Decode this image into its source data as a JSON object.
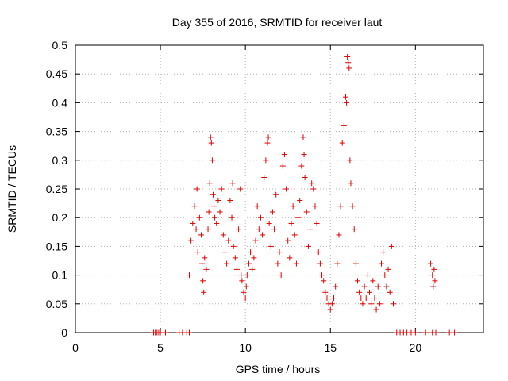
{
  "chart_data": {
    "type": "scatter",
    "title": "Day 355 of 2016, SRMTID for receiver laut",
    "xlabel": "GPS time / hours",
    "ylabel": "SRMTID / TECUs",
    "xlim": [
      0,
      24
    ],
    "ylim": [
      0,
      0.5
    ],
    "xticks": [
      0,
      5,
      10,
      15,
      20
    ],
    "yticks": [
      0,
      0.05,
      0.1,
      0.15,
      0.2,
      0.25,
      0.3,
      0.35,
      0.4,
      0.45,
      0.5
    ],
    "ytick_labels": [
      "0",
      "0.05",
      "0.1",
      "0.15",
      "0.2",
      "0.25",
      "0.3",
      "0.35",
      "0.4",
      "0.45",
      "0.5"
    ],
    "grid": true,
    "marker": "plus",
    "color": "#e00000",
    "series": [
      {
        "points": [
          [
            4.6,
            0
          ],
          [
            4.7,
            0
          ],
          [
            4.8,
            0
          ],
          [
            4.9,
            0
          ],
          [
            5.0,
            0
          ],
          [
            5.3,
            0
          ],
          [
            6.1,
            0
          ],
          [
            6.3,
            0
          ],
          [
            6.55,
            0
          ],
          [
            6.7,
            0
          ],
          [
            18.9,
            0
          ],
          [
            19.1,
            0
          ],
          [
            19.3,
            0
          ],
          [
            19.5,
            0
          ],
          [
            19.75,
            0
          ],
          [
            20.0,
            0
          ],
          [
            20.6,
            0
          ],
          [
            20.8,
            0
          ],
          [
            21.0,
            0
          ],
          [
            21.2,
            0
          ],
          [
            22.0,
            0
          ],
          [
            22.3,
            0
          ],
          [
            6.7,
            0.1
          ],
          [
            6.8,
            0.16
          ],
          [
            6.9,
            0.19
          ],
          [
            7.0,
            0.22
          ],
          [
            7.1,
            0.18
          ],
          [
            7.15,
            0.25
          ],
          [
            7.2,
            0.14
          ],
          [
            7.3,
            0.2
          ],
          [
            7.4,
            0.17
          ],
          [
            7.45,
            0.12
          ],
          [
            7.5,
            0.09
          ],
          [
            7.55,
            0.07
          ],
          [
            7.6,
            0.13
          ],
          [
            7.7,
            0.11
          ],
          [
            7.8,
            0.18
          ],
          [
            7.85,
            0.21
          ],
          [
            7.9,
            0.26
          ],
          [
            7.95,
            0.34
          ],
          [
            8.0,
            0.33
          ],
          [
            8.05,
            0.3
          ],
          [
            8.1,
            0.24
          ],
          [
            8.15,
            0.22
          ],
          [
            8.2,
            0.2
          ],
          [
            8.3,
            0.19
          ],
          [
            8.4,
            0.23
          ],
          [
            8.5,
            0.21
          ],
          [
            8.6,
            0.25
          ],
          [
            8.7,
            0.17
          ],
          [
            8.8,
            0.14
          ],
          [
            8.9,
            0.12
          ],
          [
            9.0,
            0.16
          ],
          [
            9.1,
            0.23
          ],
          [
            9.2,
            0.2
          ],
          [
            9.25,
            0.26
          ],
          [
            9.3,
            0.15
          ],
          [
            9.4,
            0.13
          ],
          [
            9.5,
            0.11
          ],
          [
            9.6,
            0.18
          ],
          [
            9.7,
            0.25
          ],
          [
            9.75,
            0.1
          ],
          [
            9.8,
            0.09
          ],
          [
            9.9,
            0.07
          ],
          [
            10.0,
            0.06
          ],
          [
            10.05,
            0.08
          ],
          [
            10.1,
            0.1
          ],
          [
            10.2,
            0.12
          ],
          [
            10.3,
            0.14
          ],
          [
            10.4,
            0.11
          ],
          [
            10.5,
            0.13
          ],
          [
            10.6,
            0.16
          ],
          [
            10.7,
            0.22
          ],
          [
            10.8,
            0.18
          ],
          [
            10.9,
            0.2
          ],
          [
            11.0,
            0.17
          ],
          [
            11.1,
            0.27
          ],
          [
            11.2,
            0.3
          ],
          [
            11.3,
            0.33
          ],
          [
            11.35,
            0.34
          ],
          [
            11.4,
            0.19
          ],
          [
            11.5,
            0.15
          ],
          [
            11.6,
            0.21
          ],
          [
            11.7,
            0.18
          ],
          [
            11.8,
            0.24
          ],
          [
            11.9,
            0.12
          ],
          [
            12.0,
            0.14
          ],
          [
            12.1,
            0.1
          ],
          [
            12.2,
            0.29
          ],
          [
            12.3,
            0.31
          ],
          [
            12.4,
            0.25
          ],
          [
            12.5,
            0.16
          ],
          [
            12.6,
            0.13
          ],
          [
            12.7,
            0.19
          ],
          [
            12.8,
            0.22
          ],
          [
            12.9,
            0.17
          ],
          [
            13.0,
            0.12
          ],
          [
            13.1,
            0.2
          ],
          [
            13.2,
            0.23
          ],
          [
            13.3,
            0.29
          ],
          [
            13.4,
            0.34
          ],
          [
            13.45,
            0.31
          ],
          [
            13.5,
            0.27
          ],
          [
            13.6,
            0.21
          ],
          [
            13.7,
            0.15
          ],
          [
            13.8,
            0.18
          ],
          [
            13.9,
            0.26
          ],
          [
            14.0,
            0.25
          ],
          [
            14.1,
            0.22
          ],
          [
            14.2,
            0.19
          ],
          [
            14.3,
            0.14
          ],
          [
            14.4,
            0.12
          ],
          [
            14.5,
            0.1
          ],
          [
            14.6,
            0.09
          ],
          [
            14.7,
            0.07
          ],
          [
            14.8,
            0.06
          ],
          [
            14.9,
            0.05
          ],
          [
            15.0,
            0.04
          ],
          [
            15.1,
            0.05
          ],
          [
            15.2,
            0.06
          ],
          [
            15.3,
            0.08
          ],
          [
            15.4,
            0.12
          ],
          [
            15.5,
            0.17
          ],
          [
            15.6,
            0.22
          ],
          [
            15.7,
            0.33
          ],
          [
            15.8,
            0.36
          ],
          [
            15.9,
            0.41
          ],
          [
            15.95,
            0.4
          ],
          [
            16.0,
            0.48
          ],
          [
            16.05,
            0.47
          ],
          [
            16.1,
            0.46
          ],
          [
            16.15,
            0.3
          ],
          [
            16.2,
            0.26
          ],
          [
            16.3,
            0.22
          ],
          [
            16.4,
            0.18
          ],
          [
            16.5,
            0.12
          ],
          [
            16.6,
            0.09
          ],
          [
            16.7,
            0.07
          ],
          [
            16.8,
            0.06
          ],
          [
            16.9,
            0.05
          ],
          [
            17.0,
            0.08
          ],
          [
            17.1,
            0.06
          ],
          [
            17.2,
            0.1
          ],
          [
            17.3,
            0.07
          ],
          [
            17.4,
            0.05
          ],
          [
            17.5,
            0.09
          ],
          [
            17.6,
            0.06
          ],
          [
            17.7,
            0.04
          ],
          [
            17.8,
            0.08
          ],
          [
            17.9,
            0.05
          ],
          [
            18.0,
            0.12
          ],
          [
            18.1,
            0.14
          ],
          [
            18.2,
            0.1
          ],
          [
            18.3,
            0.08
          ],
          [
            18.4,
            0.11
          ],
          [
            18.5,
            0.07
          ],
          [
            18.6,
            0.15
          ],
          [
            18.7,
            0.05
          ],
          [
            20.9,
            0.12
          ],
          [
            21.0,
            0.1
          ],
          [
            21.05,
            0.08
          ],
          [
            21.1,
            0.11
          ],
          [
            21.15,
            0.09
          ]
        ]
      }
    ]
  }
}
